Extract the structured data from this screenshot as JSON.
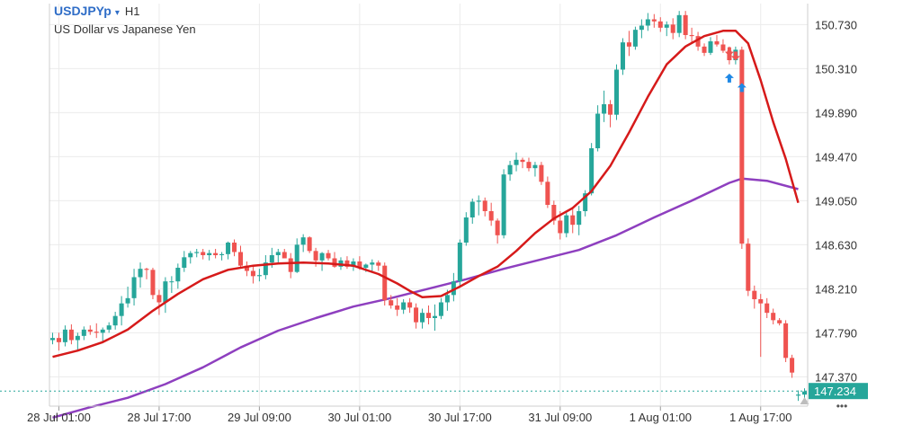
{
  "header": {
    "symbol": "USDJPYp",
    "caret": "▾",
    "timeframe": "H1",
    "description": "US Dollar vs Japanese Yen"
  },
  "more_icon": "•••",
  "colors": {
    "up": "#26a69a",
    "down": "#ef5350",
    "ma_fast": "#d61a1a",
    "ma_slow": "#8e3fbf",
    "grid": "#ebebeb",
    "axis_text": "#333333",
    "price_tag": "#26a69a"
  },
  "chart_data": {
    "type": "candlestick",
    "ylim": [
      147.09,
      150.93
    ],
    "y_ticks": [
      147.37,
      147.79,
      148.21,
      148.63,
      149.05,
      149.47,
      149.89,
      150.31,
      150.73
    ],
    "y_tick_labels": [
      "147.370",
      "147.790",
      "148.210",
      "148.630",
      "149.050",
      "149.470",
      "149.890",
      "150.310",
      "150.730"
    ],
    "x_ticks": [
      1,
      17,
      33,
      49,
      65,
      81,
      97,
      113
    ],
    "x_tick_labels": [
      "28 Jul 01:00",
      "28 Jul 17:00",
      "29 Jul 09:00",
      "30 Jul 01:00",
      "30 Jul 17:00",
      "31 Jul 09:00",
      "1 Aug 01:00",
      "1 Aug 17:00"
    ],
    "current_price": 147.234,
    "current_price_label": "147.234",
    "candles": [
      [
        147.72,
        147.79,
        147.68,
        147.74
      ],
      [
        147.74,
        147.79,
        147.62,
        147.7
      ],
      [
        147.7,
        147.86,
        147.66,
        147.82
      ],
      [
        147.82,
        147.87,
        147.68,
        147.72
      ],
      [
        147.72,
        147.79,
        147.61,
        147.76
      ],
      [
        147.76,
        147.85,
        147.72,
        147.82
      ],
      [
        147.82,
        147.86,
        147.77,
        147.8
      ],
      [
        147.8,
        147.88,
        147.74,
        147.79
      ],
      [
        147.79,
        147.84,
        147.7,
        147.82
      ],
      [
        147.82,
        147.89,
        147.79,
        147.86
      ],
      [
        147.86,
        147.99,
        147.82,
        147.95
      ],
      [
        147.95,
        148.14,
        147.86,
        148.07
      ],
      [
        148.07,
        148.23,
        148.03,
        148.12
      ],
      [
        148.12,
        148.4,
        148.05,
        148.32
      ],
      [
        148.32,
        148.46,
        148.22,
        148.4
      ],
      [
        148.4,
        148.41,
        148.3,
        148.39
      ],
      [
        148.39,
        148.41,
        148.11,
        148.15
      ],
      [
        148.15,
        148.2,
        147.96,
        148.08
      ],
      [
        148.08,
        148.32,
        147.98,
        148.28
      ],
      [
        148.28,
        148.33,
        148.17,
        148.28
      ],
      [
        148.28,
        148.45,
        148.21,
        148.41
      ],
      [
        148.41,
        148.57,
        148.37,
        148.51
      ],
      [
        148.51,
        148.57,
        148.45,
        148.55
      ],
      [
        148.55,
        148.59,
        148.51,
        148.56
      ],
      [
        148.56,
        148.59,
        148.49,
        148.53
      ],
      [
        148.53,
        148.58,
        148.48,
        148.55
      ],
      [
        148.55,
        148.59,
        148.5,
        148.53
      ],
      [
        148.53,
        148.56,
        148.48,
        148.54
      ],
      [
        148.54,
        148.66,
        148.49,
        148.65
      ],
      [
        148.65,
        148.68,
        148.52,
        148.56
      ],
      [
        148.56,
        148.62,
        148.41,
        148.43
      ],
      [
        148.43,
        148.47,
        148.33,
        148.38
      ],
      [
        148.38,
        148.42,
        148.26,
        148.33
      ],
      [
        148.33,
        148.4,
        148.28,
        148.34
      ],
      [
        148.34,
        148.53,
        148.3,
        148.46
      ],
      [
        148.46,
        148.6,
        148.41,
        148.53
      ],
      [
        148.53,
        148.59,
        148.45,
        148.56
      ],
      [
        148.56,
        148.59,
        148.5,
        148.5
      ],
      [
        148.5,
        148.55,
        148.31,
        148.37
      ],
      [
        148.37,
        148.69,
        148.36,
        148.63
      ],
      [
        148.63,
        148.73,
        148.56,
        148.7
      ],
      [
        148.7,
        148.71,
        148.55,
        148.57
      ],
      [
        148.57,
        148.6,
        148.42,
        148.48
      ],
      [
        148.48,
        148.56,
        148.38,
        148.55
      ],
      [
        148.55,
        148.58,
        148.48,
        148.5
      ],
      [
        148.5,
        148.56,
        148.41,
        148.42
      ],
      [
        148.42,
        148.51,
        148.39,
        148.48
      ],
      [
        148.48,
        148.52,
        148.4,
        148.42
      ],
      [
        148.42,
        148.5,
        148.38,
        148.47
      ],
      [
        148.47,
        148.52,
        148.39,
        148.41
      ],
      [
        148.41,
        148.45,
        148.37,
        148.44
      ],
      [
        148.44,
        148.49,
        148.38,
        148.46
      ],
      [
        148.46,
        148.48,
        148.38,
        148.43
      ],
      [
        148.43,
        148.46,
        148.05,
        148.1
      ],
      [
        148.1,
        148.15,
        148.02,
        148.05
      ],
      [
        148.05,
        148.12,
        147.95,
        148.01
      ],
      [
        148.01,
        148.11,
        147.97,
        148.08
      ],
      [
        148.08,
        148.12,
        147.98,
        148.03
      ],
      [
        148.03,
        148.07,
        147.83,
        147.89
      ],
      [
        147.89,
        148.02,
        147.83,
        147.98
      ],
      [
        147.98,
        148.05,
        147.87,
        147.93
      ],
      [
        147.93,
        148.06,
        147.81,
        147.95
      ],
      [
        147.95,
        148.12,
        147.92,
        148.08
      ],
      [
        148.08,
        148.2,
        148.0,
        148.15
      ],
      [
        148.15,
        148.36,
        148.09,
        148.28
      ],
      [
        148.28,
        148.68,
        148.22,
        148.65
      ],
      [
        148.65,
        148.94,
        148.62,
        148.89
      ],
      [
        148.89,
        149.07,
        148.83,
        149.04
      ],
      [
        149.04,
        149.1,
        148.91,
        149.05
      ],
      [
        149.05,
        149.08,
        148.9,
        148.95
      ],
      [
        148.95,
        149.03,
        148.81,
        148.86
      ],
      [
        148.86,
        148.88,
        148.64,
        148.72
      ],
      [
        148.72,
        149.35,
        148.69,
        149.3
      ],
      [
        149.3,
        149.43,
        149.24,
        149.39
      ],
      [
        149.39,
        149.51,
        149.33,
        149.44
      ],
      [
        149.44,
        149.46,
        149.36,
        149.42
      ],
      [
        149.42,
        149.46,
        149.33,
        149.36
      ],
      [
        149.36,
        149.42,
        149.28,
        149.39
      ],
      [
        149.39,
        149.42,
        149.2,
        149.23
      ],
      [
        149.23,
        149.28,
        148.98,
        149.01
      ],
      [
        149.01,
        149.05,
        148.82,
        148.86
      ],
      [
        148.86,
        148.95,
        148.68,
        148.74
      ],
      [
        148.74,
        148.95,
        148.7,
        148.91
      ],
      [
        148.91,
        148.98,
        148.74,
        148.82
      ],
      [
        148.82,
        149.0,
        148.72,
        148.95
      ],
      [
        148.95,
        149.15,
        148.9,
        149.12
      ],
      [
        149.12,
        149.6,
        149.1,
        149.55
      ],
      [
        149.55,
        149.96,
        149.52,
        149.88
      ],
      [
        149.88,
        150.1,
        149.8,
        149.97
      ],
      [
        149.97,
        150.01,
        149.75,
        149.87
      ],
      [
        149.87,
        150.35,
        149.82,
        150.3
      ],
      [
        150.3,
        150.6,
        150.25,
        150.56
      ],
      [
        150.56,
        150.67,
        150.43,
        150.52
      ],
      [
        150.52,
        150.71,
        150.49,
        150.68
      ],
      [
        150.68,
        150.78,
        150.6,
        150.72
      ],
      [
        150.72,
        150.84,
        150.67,
        150.78
      ],
      [
        150.78,
        150.83,
        150.7,
        150.76
      ],
      [
        150.76,
        150.8,
        150.66,
        150.7
      ],
      [
        150.7,
        150.76,
        150.62,
        150.73
      ],
      [
        150.73,
        150.79,
        150.59,
        150.65
      ],
      [
        150.65,
        150.86,
        150.61,
        150.82
      ],
      [
        150.82,
        150.86,
        150.59,
        150.63
      ],
      [
        150.63,
        150.7,
        150.55,
        150.62
      ],
      [
        150.62,
        150.66,
        150.48,
        150.52
      ],
      [
        150.52,
        150.55,
        150.43,
        150.46
      ],
      [
        150.46,
        150.61,
        150.44,
        150.57
      ],
      [
        150.57,
        150.63,
        150.52,
        150.54
      ],
      [
        150.54,
        150.59,
        150.46,
        150.48
      ],
      [
        150.48,
        150.52,
        150.35,
        150.39
      ],
      [
        150.39,
        150.52,
        150.35,
        150.49
      ],
      [
        150.49,
        150.52,
        148.59,
        148.64
      ],
      [
        148.64,
        148.69,
        148.14,
        148.19
      ],
      [
        148.19,
        148.24,
        148.02,
        148.11
      ],
      [
        148.11,
        148.16,
        147.56,
        148.07
      ],
      [
        148.07,
        148.12,
        147.93,
        147.98
      ],
      [
        147.98,
        148.02,
        147.87,
        147.91
      ],
      [
        147.91,
        147.93,
        147.86,
        147.88
      ],
      [
        147.88,
        147.91,
        147.51,
        147.55
      ],
      [
        147.55,
        147.58,
        147.36,
        147.41
      ],
      [
        147.19,
        147.24,
        147.14,
        147.2
      ],
      [
        147.2,
        147.26,
        147.16,
        147.23
      ]
    ],
    "ma_fast": [
      [
        0,
        147.56
      ],
      [
        4,
        147.62
      ],
      [
        8,
        147.7
      ],
      [
        12,
        147.82
      ],
      [
        16,
        148.0
      ],
      [
        20,
        148.16
      ],
      [
        24,
        148.3
      ],
      [
        28,
        148.39
      ],
      [
        32,
        148.43
      ],
      [
        36,
        148.45
      ],
      [
        40,
        148.46
      ],
      [
        44,
        148.45
      ],
      [
        48,
        148.43
      ],
      [
        52,
        148.35
      ],
      [
        55,
        148.26
      ],
      [
        57,
        148.19
      ],
      [
        59,
        148.13
      ],
      [
        62,
        148.14
      ],
      [
        65,
        148.23
      ],
      [
        68,
        148.33
      ],
      [
        71,
        148.42
      ],
      [
        74,
        148.57
      ],
      [
        77,
        148.74
      ],
      [
        80,
        148.88
      ],
      [
        83,
        148.98
      ],
      [
        86,
        149.14
      ],
      [
        89,
        149.38
      ],
      [
        92,
        149.7
      ],
      [
        95,
        150.04
      ],
      [
        98,
        150.35
      ],
      [
        101,
        150.52
      ],
      [
        104,
        150.62
      ],
      [
        107,
        150.67
      ],
      [
        109,
        150.67
      ],
      [
        111,
        150.55
      ],
      [
        113,
        150.2
      ],
      [
        115,
        149.8
      ],
      [
        117,
        149.45
      ],
      [
        119,
        149.03
      ]
    ],
    "ma_slow": [
      [
        0,
        146.98
      ],
      [
        6,
        147.08
      ],
      [
        12,
        147.17
      ],
      [
        18,
        147.3
      ],
      [
        24,
        147.46
      ],
      [
        30,
        147.65
      ],
      [
        36,
        147.81
      ],
      [
        42,
        147.93
      ],
      [
        48,
        148.04
      ],
      [
        54,
        148.12
      ],
      [
        60,
        148.21
      ],
      [
        66,
        148.3
      ],
      [
        72,
        148.4
      ],
      [
        78,
        148.49
      ],
      [
        84,
        148.58
      ],
      [
        90,
        148.72
      ],
      [
        96,
        148.89
      ],
      [
        102,
        149.05
      ],
      [
        108,
        149.22
      ],
      [
        110,
        149.26
      ],
      [
        114,
        149.24
      ],
      [
        119,
        149.16
      ]
    ],
    "arrows": [
      {
        "i": 108,
        "price": 150.47,
        "dir": "down",
        "color": "#ef5350"
      },
      {
        "i": 109,
        "price": 150.43,
        "dir": "down",
        "color": "#ef5350"
      },
      {
        "i": 108,
        "price": 150.22,
        "dir": "up",
        "color": "#1e88e5"
      },
      {
        "i": 110,
        "price": 150.13,
        "dir": "up",
        "color": "#1e88e5"
      }
    ]
  }
}
